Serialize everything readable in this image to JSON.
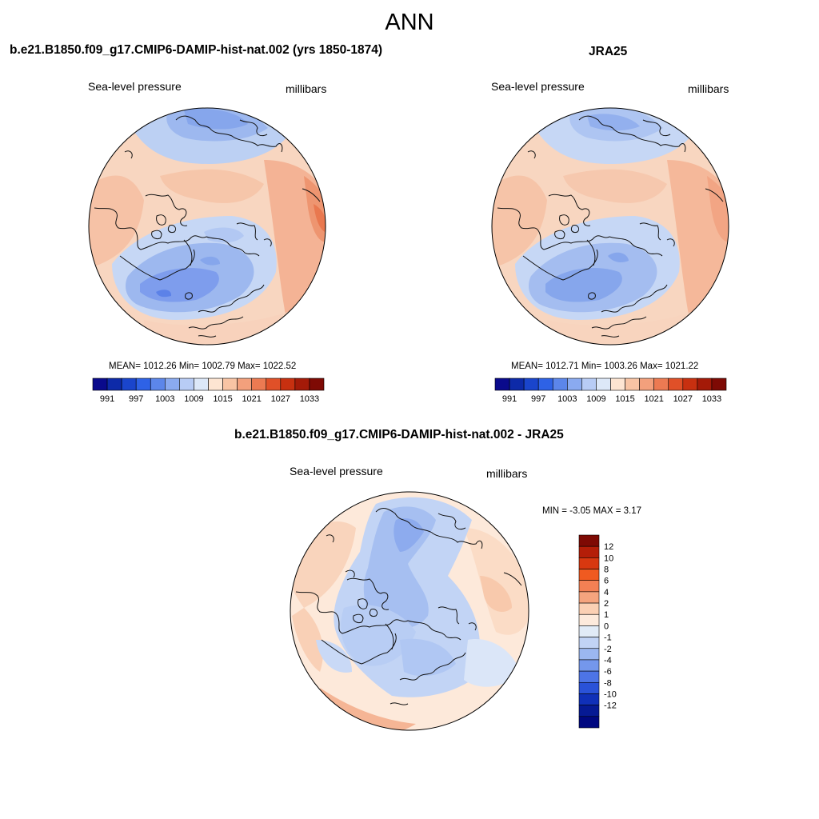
{
  "main_title": "ANN",
  "panels": [
    {
      "title": "b.e21.B1850.f09_g17.CMIP6-DAMIP-hist-nat.002 (yrs 1850-1874)",
      "left_label": "Sea-level pressure",
      "right_label": "millibars",
      "stats": "MEAN= 1012.26  Min= 1002.79  Max= 1022.52",
      "cb_ticks": [
        "991",
        "997",
        "1003",
        "1009",
        "1015",
        "1021",
        "1027",
        "1033"
      ]
    },
    {
      "title": "JRA25",
      "left_label": "Sea-level pressure",
      "right_label": "millibars",
      "stats": "MEAN= 1012.71  Min= 1003.26  Max= 1021.22",
      "cb_ticks": [
        "991",
        "997",
        "1003",
        "1009",
        "1015",
        "1021",
        "1027",
        "1033"
      ]
    },
    {
      "title": "b.e21.B1850.f09_g17.CMIP6-DAMIP-hist-nat.002 - JRA25",
      "left_label": "Sea-level pressure",
      "right_label": "millibars",
      "stats": "MIN =  -3.05 MAX =   3.17",
      "cb_ticks": [
        "12",
        "10",
        "8",
        "6",
        "4",
        "2",
        "1",
        "0",
        "-1",
        "-2",
        "-4",
        "-6",
        "-8",
        "-10",
        "-12"
      ]
    }
  ],
  "colors": {
    "abs_scale": [
      "#0a0a8c",
      "#0d2aa8",
      "#1a45cc",
      "#2e62e6",
      "#5c86ea",
      "#8aaaf0",
      "#b8ccf5",
      "#dde8f8",
      "#fde5d2",
      "#f8c4a4",
      "#f3a07c",
      "#ec7a52",
      "#e05028",
      "#c83010",
      "#a41a08",
      "#7e0a04"
    ],
    "diff_scale": [
      "#7e0a04",
      "#b41e08",
      "#d83810",
      "#f05a20",
      "#f38054",
      "#f5a47e",
      "#fbd0b4",
      "#fdeadc",
      "#e1ebf7",
      "#c1d3f5",
      "#9bb7f0",
      "#7497ec",
      "#4d74e6",
      "#2a52d8",
      "#1030b8",
      "#061a94",
      "#000880"
    ]
  }
}
